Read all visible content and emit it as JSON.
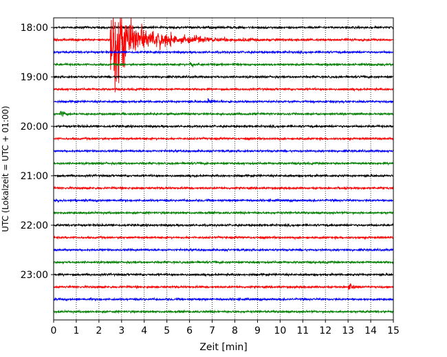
{
  "chart_data": {
    "type": "line",
    "title": "",
    "xlabel": "Zeit  [min]",
    "ylabel": "UTC (Lokalzeit = UTC + 01:00)",
    "xlim": [
      0,
      15
    ],
    "x_ticks": [
      0,
      1,
      2,
      3,
      4,
      5,
      6,
      7,
      8,
      9,
      10,
      11,
      12,
      13,
      14,
      15
    ],
    "y_tick_labels": [
      "18:00",
      "19:00",
      "20:00",
      "21:00",
      "22:00",
      "23:00"
    ],
    "grid": {
      "x": true,
      "y": false,
      "style": "dotted"
    },
    "trace_colors": [
      "#000000",
      "#ff0000",
      "#0000ff",
      "#008000"
    ],
    "traces": [
      {
        "start": "18:00",
        "color": "#000000"
      },
      {
        "start": "18:15",
        "color": "#ff0000"
      },
      {
        "start": "18:30",
        "color": "#0000ff"
      },
      {
        "start": "18:45",
        "color": "#008000"
      },
      {
        "start": "19:00",
        "color": "#000000"
      },
      {
        "start": "19:15",
        "color": "#ff0000"
      },
      {
        "start": "19:30",
        "color": "#0000ff"
      },
      {
        "start": "19:45",
        "color": "#008000"
      },
      {
        "start": "20:00",
        "color": "#000000"
      },
      {
        "start": "20:15",
        "color": "#ff0000"
      },
      {
        "start": "20:30",
        "color": "#0000ff"
      },
      {
        "start": "20:45",
        "color": "#008000"
      },
      {
        "start": "21:00",
        "color": "#000000"
      },
      {
        "start": "21:15",
        "color": "#ff0000"
      },
      {
        "start": "21:30",
        "color": "#0000ff"
      },
      {
        "start": "21:45",
        "color": "#008000"
      },
      {
        "start": "22:00",
        "color": "#000000"
      },
      {
        "start": "22:15",
        "color": "#ff0000"
      },
      {
        "start": "22:30",
        "color": "#0000ff"
      },
      {
        "start": "22:45",
        "color": "#008000"
      },
      {
        "start": "23:00",
        "color": "#000000"
      },
      {
        "start": "23:15",
        "color": "#ff0000"
      },
      {
        "start": "23:30",
        "color": "#0000ff"
      },
      {
        "start": "23:45",
        "color": "#008000"
      }
    ],
    "events": [
      {
        "start": "18:15",
        "onset_min": 2.5,
        "description": "large earthquake signal",
        "peak_relative": 1.0
      },
      {
        "start": "18:45",
        "onset_min": 6.0,
        "description": "small event",
        "peak_relative": 0.15
      },
      {
        "start": "19:30",
        "onset_min": 6.8,
        "description": "small event",
        "peak_relative": 0.12
      },
      {
        "start": "19:45",
        "onset_min": 0.3,
        "description": "small event",
        "peak_relative": 0.1
      },
      {
        "start": "23:15",
        "onset_min": 13.0,
        "description": "small event",
        "peak_relative": 0.15
      }
    ]
  }
}
